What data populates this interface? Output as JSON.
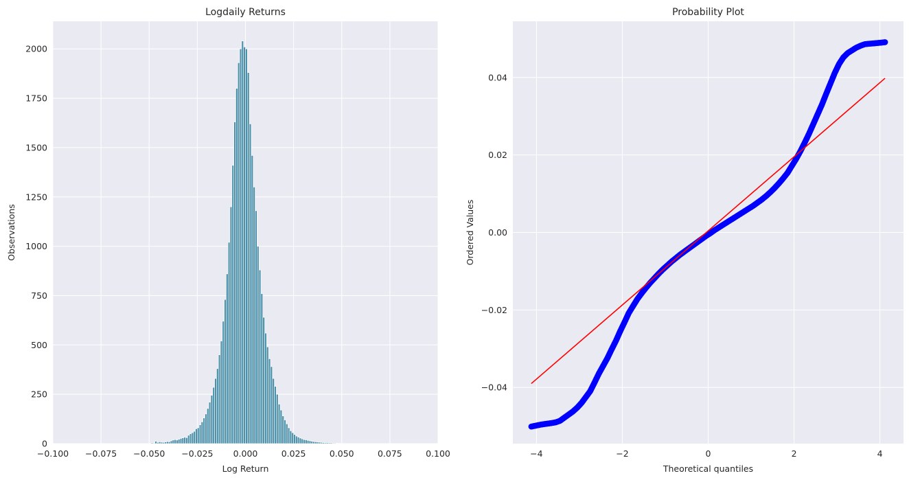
{
  "chart_data": [
    {
      "type": "bar",
      "title": "Logdaily Returns",
      "xlabel": "Log Return",
      "ylabel": "Observations",
      "xlim": [
        -0.1,
        0.1
      ],
      "ylim": [
        0,
        2140
      ],
      "grid": true,
      "bar_color": "#4c8fa8",
      "xticks": [
        "−0.100",
        "−0.075",
        "−0.050",
        "−0.025",
        "0.000",
        "0.025",
        "0.050",
        "0.075",
        "0.100"
      ],
      "xtick_values": [
        -0.1,
        -0.075,
        -0.05,
        -0.025,
        0.0,
        0.025,
        0.05,
        0.075,
        0.1
      ],
      "yticks": [
        "0",
        "250",
        "500",
        "750",
        "1000",
        "1250",
        "1500",
        "1750",
        "2000"
      ],
      "ytick_values": [
        0,
        250,
        500,
        750,
        1000,
        1250,
        1500,
        1750,
        2000
      ],
      "bin_width": 0.001,
      "bin_centers": [
        -0.0485,
        -0.0475,
        -0.0465,
        -0.0455,
        -0.0445,
        -0.0435,
        -0.0425,
        -0.0415,
        -0.0405,
        -0.0395,
        -0.0385,
        -0.0375,
        -0.0365,
        -0.0355,
        -0.0345,
        -0.0335,
        -0.0325,
        -0.0315,
        -0.0305,
        -0.0295,
        -0.0285,
        -0.0275,
        -0.0265,
        -0.0255,
        -0.0245,
        -0.0235,
        -0.0225,
        -0.0215,
        -0.0205,
        -0.0195,
        -0.0185,
        -0.0175,
        -0.0165,
        -0.0155,
        -0.0145,
        -0.0135,
        -0.0125,
        -0.0115,
        -0.0105,
        -0.0095,
        -0.0085,
        -0.0075,
        -0.0065,
        -0.0055,
        -0.0045,
        -0.0035,
        -0.0025,
        -0.0015,
        -0.0005,
        0.0005,
        0.0015,
        0.0025,
        0.0035,
        0.0045,
        0.0055,
        0.0065,
        0.0075,
        0.0085,
        0.0095,
        0.0105,
        0.0115,
        0.0125,
        0.0135,
        0.0145,
        0.0155,
        0.0165,
        0.0175,
        0.0185,
        0.0195,
        0.0205,
        0.0215,
        0.0225,
        0.0235,
        0.0245,
        0.0255,
        0.0265,
        0.0275,
        0.0285,
        0.0295,
        0.0305,
        0.0315,
        0.0325,
        0.0335,
        0.0345,
        0.0355,
        0.0365,
        0.0375,
        0.0385,
        0.0395,
        0.0405,
        0.0415,
        0.0425,
        0.0435,
        0.0445,
        0.0455,
        0.0465,
        0.0475,
        0.0485
      ],
      "values": [
        4,
        3,
        12,
        6,
        9,
        7,
        6,
        8,
        10,
        9,
        14,
        18,
        20,
        18,
        22,
        26,
        29,
        32,
        30,
        42,
        50,
        55,
        62,
        75,
        80,
        95,
        110,
        130,
        150,
        178,
        210,
        245,
        285,
        330,
        380,
        450,
        520,
        620,
        730,
        860,
        1020,
        1200,
        1410,
        1630,
        1800,
        1930,
        2000,
        2040,
        2010,
        2000,
        1880,
        1620,
        1460,
        1300,
        1180,
        1000,
        880,
        760,
        640,
        560,
        490,
        430,
        390,
        330,
        290,
        250,
        200,
        170,
        140,
        120,
        100,
        80,
        65,
        55,
        46,
        38,
        33,
        28,
        24,
        20,
        19,
        16,
        14,
        12,
        10,
        9,
        8,
        7,
        6,
        5,
        4,
        5,
        4,
        4,
        3,
        3,
        2,
        2
      ]
    },
    {
      "type": "scatter",
      "title": "Probability Plot",
      "xlabel": "Theoretical quantiles",
      "ylabel": "Ordered Values",
      "xlim": [
        -4.55,
        4.55
      ],
      "ylim": [
        -0.0545,
        0.0545
      ],
      "grid": true,
      "xticks": [
        "−4",
        "−2",
        "0",
        "2",
        "4"
      ],
      "xtick_values": [
        -4,
        -2,
        0,
        2,
        4
      ],
      "yticks": [
        "−0.04",
        "−0.02",
        "0.00",
        "0.02",
        "0.04"
      ],
      "ytick_values": [
        -0.04,
        -0.02,
        0.0,
        0.02,
        0.04
      ],
      "point_color": "#0000ff",
      "line_color": "#ff0000",
      "fit_line": {
        "x": [
          -4.12,
          4.12
        ],
        "y": [
          -0.039,
          0.0398
        ]
      },
      "points": {
        "x": [
          -4.12,
          -3.9,
          -3.78,
          -3.65,
          -3.55,
          -3.45,
          -3.35,
          -3.25,
          -3.15,
          -3.05,
          -2.95,
          -2.85,
          -2.75,
          -2.65,
          -2.55,
          -2.45,
          -2.35,
          -2.25,
          -2.15,
          -2.05,
          -1.95,
          -1.85,
          -1.75,
          -1.65,
          -1.55,
          -1.45,
          -1.35,
          -1.25,
          -1.15,
          -1.05,
          -0.95,
          -0.85,
          -0.75,
          -0.65,
          -0.55,
          -0.45,
          -0.35,
          -0.25,
          -0.15,
          -0.05,
          0.05,
          0.15,
          0.25,
          0.35,
          0.45,
          0.55,
          0.65,
          0.75,
          0.85,
          0.95,
          1.05,
          1.15,
          1.25,
          1.35,
          1.45,
          1.55,
          1.65,
          1.75,
          1.85,
          1.95,
          2.05,
          2.15,
          2.25,
          2.35,
          2.45,
          2.55,
          2.65,
          2.75,
          2.85,
          2.95,
          3.05,
          3.15,
          3.25,
          3.35,
          3.45,
          3.55,
          3.65,
          3.75,
          3.85,
          3.95,
          4.12
        ],
        "y": [
          -0.0501,
          -0.0496,
          -0.0494,
          -0.0492,
          -0.049,
          -0.0486,
          -0.0478,
          -0.047,
          -0.0462,
          -0.0452,
          -0.044,
          -0.0425,
          -0.041,
          -0.0388,
          -0.0365,
          -0.0345,
          -0.0325,
          -0.0302,
          -0.028,
          -0.0255,
          -0.0232,
          -0.0208,
          -0.019,
          -0.0172,
          -0.0157,
          -0.0143,
          -0.013,
          -0.0118,
          -0.0106,
          -0.0095,
          -0.0085,
          -0.0075,
          -0.0066,
          -0.0057,
          -0.0049,
          -0.0041,
          -0.0033,
          -0.0025,
          -0.0017,
          -0.0009,
          -0.0002,
          0.0006,
          0.0013,
          0.002,
          0.0027,
          0.0034,
          0.0041,
          0.0048,
          0.0055,
          0.0062,
          0.0069,
          0.0077,
          0.0085,
          0.0094,
          0.0104,
          0.0115,
          0.0127,
          0.014,
          0.0154,
          0.0172,
          0.019,
          0.021,
          0.0232,
          0.0255,
          0.028,
          0.0305,
          0.033,
          0.0358,
          0.0385,
          0.0412,
          0.0435,
          0.0452,
          0.0463,
          0.047,
          0.0477,
          0.0482,
          0.0486,
          0.0487,
          0.0488,
          0.0489,
          0.0491
        ]
      }
    }
  ]
}
